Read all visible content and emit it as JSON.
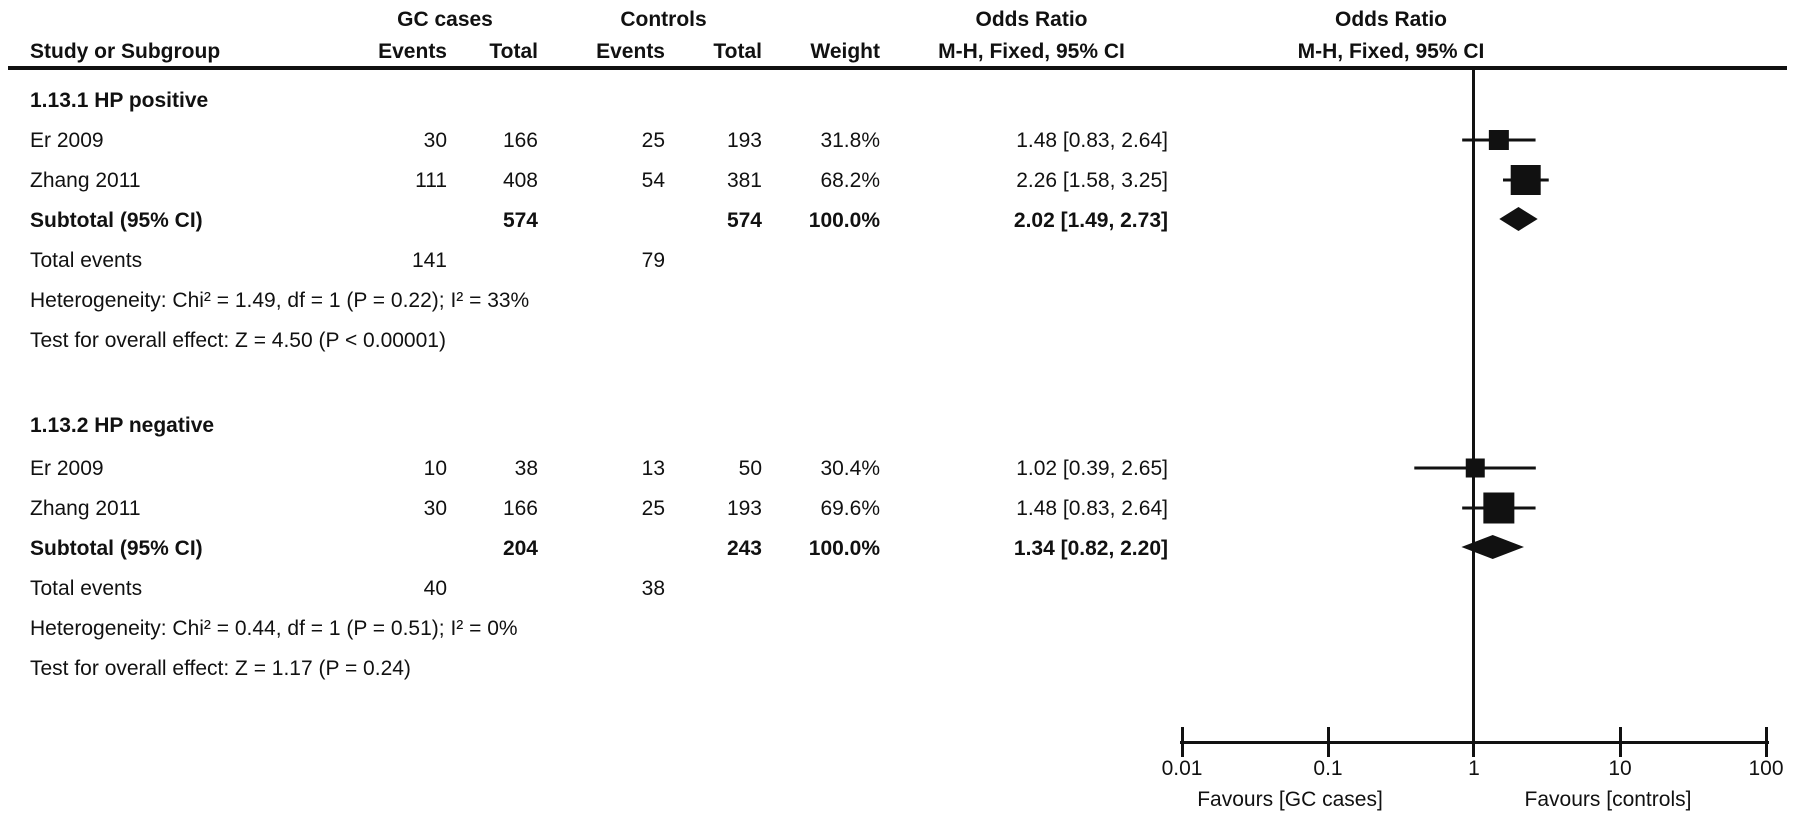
{
  "header": {
    "study_col": "Study or Subgroup",
    "gc_cases_group": "GC cases",
    "controls_group": "Controls",
    "events1": "Events",
    "total1": "Total",
    "events2": "Events",
    "total2": "Total",
    "weight": "Weight",
    "odds_ratio_left": "Odds Ratio",
    "mh_left": "M-H, Fixed, 95% CI",
    "odds_ratio_right": "Odds Ratio",
    "mh_right": "M-H, Fixed, 95% CI"
  },
  "groups": [
    {
      "title": "1.13.1 HP positive",
      "studies": [
        {
          "name": "Er 2009",
          "events1": "30",
          "total1": "166",
          "events2": "25",
          "total2": "193",
          "weight": "31.8%",
          "ci": "1.48 [0.83, 2.64]"
        },
        {
          "name": "Zhang 2011",
          "events1": "111",
          "total1": "408",
          "events2": "54",
          "total2": "381",
          "weight": "68.2%",
          "ci": "2.26 [1.58, 3.25]"
        }
      ],
      "subtotal": {
        "label": "Subtotal (95% CI)",
        "total1": "574",
        "total2": "574",
        "weight": "100.0%",
        "ci": "2.02 [1.49, 2.73]"
      },
      "total_events": {
        "label": "Total events",
        "events1": "141",
        "events2": "79"
      },
      "heterogeneity": "Heterogeneity: Chi² = 1.49, df = 1 (P = 0.22); I² = 33%",
      "overall_effect": "Test for overall effect: Z = 4.50 (P < 0.00001)"
    },
    {
      "title": "1.13.2 HP negative",
      "studies": [
        {
          "name": "Er 2009",
          "events1": "10",
          "total1": "38",
          "events2": "13",
          "total2": "50",
          "weight": "30.4%",
          "ci": "1.02 [0.39, 2.65]"
        },
        {
          "name": "Zhang 2011",
          "events1": "30",
          "total1": "166",
          "events2": "25",
          "total2": "193",
          "weight": "69.6%",
          "ci": "1.48 [0.83, 2.64]"
        }
      ],
      "subtotal": {
        "label": "Subtotal (95% CI)",
        "total1": "204",
        "total2": "243",
        "weight": "100.0%",
        "ci": "1.34 [0.82, 2.20]"
      },
      "total_events": {
        "label": "Total events",
        "events1": "40",
        "events2": "38"
      },
      "heterogeneity": "Heterogeneity: Chi² = 0.44, df = 1 (P = 0.51); I² = 0%",
      "overall_effect": "Test for overall effect: Z = 1.17 (P = 0.24)"
    }
  ],
  "axis": {
    "ticks": [
      "0.01",
      "0.1",
      "1",
      "10",
      "100"
    ],
    "favours_left": "Favours [GC cases]",
    "favours_right": "Favours [controls]"
  },
  "colors": {
    "ink": "#111111",
    "background": "#ffffff"
  },
  "chart_data": {
    "type": "forest",
    "effect_measure": "Odds Ratio",
    "model": "M-H, Fixed, 95% CI",
    "x_scale": "log10",
    "xlim": [
      0.01,
      100
    ],
    "x_ticks": [
      0.01,
      0.1,
      1,
      10,
      100
    ],
    "no_effect_line": 1,
    "legend_left": "Favours [GC cases]",
    "legend_right": "Favours [controls]",
    "groups": [
      {
        "name": "1.13.1 HP positive",
        "studies": [
          {
            "study": "Er 2009",
            "or": 1.48,
            "ci_low": 0.83,
            "ci_high": 2.64,
            "weight_pct": 31.8
          },
          {
            "study": "Zhang 2011",
            "or": 2.26,
            "ci_low": 1.58,
            "ci_high": 3.25,
            "weight_pct": 68.2
          }
        ],
        "subtotal": {
          "or": 2.02,
          "ci_low": 1.49,
          "ci_high": 2.73
        },
        "total_events": [
          141,
          79
        ],
        "heterogeneity": {
          "chi2": 1.49,
          "df": 1,
          "p": 0.22,
          "i2_pct": 33
        },
        "overall": {
          "z": 4.5,
          "p": "< 0.00001"
        }
      },
      {
        "name": "1.13.2 HP negative",
        "studies": [
          {
            "study": "Er 2009",
            "or": 1.02,
            "ci_low": 0.39,
            "ci_high": 2.65,
            "weight_pct": 30.4
          },
          {
            "study": "Zhang 2011",
            "or": 1.48,
            "ci_low": 0.83,
            "ci_high": 2.64,
            "weight_pct": 69.6
          }
        ],
        "subtotal": {
          "or": 1.34,
          "ci_low": 0.82,
          "ci_high": 2.2
        },
        "total_events": [
          40,
          38
        ],
        "heterogeneity": {
          "chi2": 0.44,
          "df": 1,
          "p": 0.51,
          "i2_pct": 0
        },
        "overall": {
          "z": 1.17,
          "p": "= 0.24"
        }
      }
    ]
  }
}
